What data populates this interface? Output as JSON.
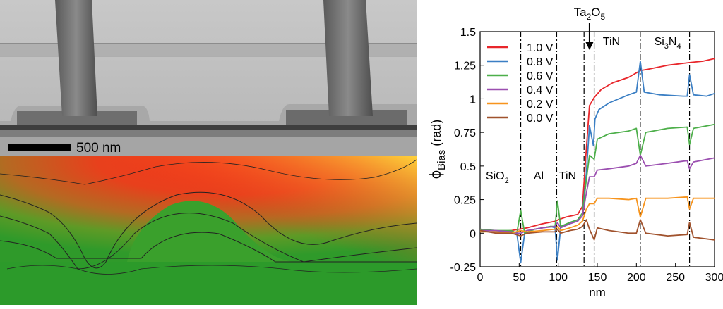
{
  "tem_panel": {
    "scale_bar_label": "500 nm"
  },
  "chart_data": {
    "type": "line",
    "xlabel": "nm",
    "ylabel_main": "ϕ",
    "ylabel_sub": "Bias",
    "ylabel_unit": " (rad)",
    "xlim": [
      0,
      300
    ],
    "ylim": [
      -0.25,
      1.5
    ],
    "x_ticks": [
      0,
      50,
      100,
      150,
      200,
      250,
      300
    ],
    "x_tick_labels": [
      "0",
      "50",
      "100",
      "150",
      "200",
      "250",
      "300"
    ],
    "y_ticks": [
      -0.25,
      0,
      0.25,
      0.5,
      0.75,
      1,
      1.25,
      1.5
    ],
    "y_tick_labels": [
      "-0.25",
      "0",
      "0.25",
      "0.5",
      "0.75",
      "1",
      "1.25",
      "1.5"
    ],
    "grid": false,
    "legend_position": "top-left",
    "boundaries": [
      52,
      98,
      133,
      146,
      205,
      268
    ],
    "region_labels": [
      {
        "text": "SiO",
        "sub": "2",
        "x": 22,
        "y": 0.4
      },
      {
        "text": "Al",
        "sub": "",
        "x": 75,
        "y": 0.4
      },
      {
        "text": "TiN",
        "sub": "",
        "x": 112,
        "y": 0.4
      },
      {
        "text": "TiN",
        "sub": "",
        "x": 168,
        "y": 1.4
      },
      {
        "text": "Si",
        "sub": "3",
        "text2": "N",
        "sub2": "4",
        "x": 240,
        "y": 1.4
      }
    ],
    "arrow_annotation": {
      "text": "Ta",
      "sub": "2",
      "text2": "O",
      "sub2": "5",
      "x": 140
    },
    "series": [
      {
        "name": "1.0 V",
        "color": "#e8262b",
        "points": [
          [
            0,
            0.02
          ],
          [
            20,
            0.01
          ],
          [
            40,
            0.02
          ],
          [
            50,
            0.03
          ],
          [
            60,
            0.04
          ],
          [
            80,
            0.07
          ],
          [
            97,
            0.09
          ],
          [
            100,
            0.1
          ],
          [
            110,
            0.12
          ],
          [
            125,
            0.14
          ],
          [
            131,
            0.2
          ],
          [
            135,
            0.55
          ],
          [
            140,
            0.95
          ],
          [
            146,
            1.01
          ],
          [
            155,
            1.07
          ],
          [
            170,
            1.12
          ],
          [
            190,
            1.16
          ],
          [
            205,
            1.21
          ],
          [
            215,
            1.22
          ],
          [
            240,
            1.25
          ],
          [
            268,
            1.27
          ],
          [
            285,
            1.28
          ],
          [
            300,
            1.3
          ]
        ]
      },
      {
        "name": "0.8 V",
        "color": "#3b7fc4",
        "points": [
          [
            0,
            0.02
          ],
          [
            20,
            0.01
          ],
          [
            40,
            0.01
          ],
          [
            47,
            0.0
          ],
          [
            52,
            -0.22
          ],
          [
            57,
            0.0
          ],
          [
            70,
            0.03
          ],
          [
            90,
            0.05
          ],
          [
            96,
            0.04
          ],
          [
            99,
            -0.2
          ],
          [
            103,
            0.04
          ],
          [
            115,
            0.08
          ],
          [
            125,
            0.1
          ],
          [
            131,
            0.15
          ],
          [
            136,
            0.45
          ],
          [
            140,
            0.8
          ],
          [
            145,
            0.65
          ],
          [
            147,
            0.85
          ],
          [
            152,
            0.92
          ],
          [
            165,
            0.97
          ],
          [
            190,
            1.03
          ],
          [
            200,
            1.05
          ],
          [
            205,
            1.28
          ],
          [
            210,
            1.05
          ],
          [
            230,
            1.03
          ],
          [
            260,
            1.02
          ],
          [
            265,
            1.02
          ],
          [
            268,
            1.18
          ],
          [
            273,
            1.03
          ],
          [
            290,
            1.02
          ],
          [
            300,
            1.04
          ]
        ]
      },
      {
        "name": "0.6 V",
        "color": "#4daf4a",
        "points": [
          [
            0,
            0.03
          ],
          [
            20,
            0.02
          ],
          [
            40,
            0.02
          ],
          [
            47,
            0.0
          ],
          [
            52,
            0.17
          ],
          [
            57,
            0.0
          ],
          [
            70,
            0.03
          ],
          [
            90,
            0.05
          ],
          [
            96,
            0.05
          ],
          [
            99,
            0.24
          ],
          [
            103,
            0.05
          ],
          [
            115,
            0.08
          ],
          [
            125,
            0.1
          ],
          [
            131,
            0.15
          ],
          [
            136,
            0.4
          ],
          [
            140,
            0.58
          ],
          [
            146,
            0.55
          ],
          [
            150,
            0.7
          ],
          [
            165,
            0.74
          ],
          [
            190,
            0.76
          ],
          [
            200,
            0.78
          ],
          [
            205,
            0.58
          ],
          [
            212,
            0.75
          ],
          [
            240,
            0.78
          ],
          [
            265,
            0.79
          ],
          [
            268,
            0.66
          ],
          [
            273,
            0.78
          ],
          [
            300,
            0.81
          ]
        ]
      },
      {
        "name": "0.4 V",
        "color": "#9b4fb0",
        "points": [
          [
            0,
            0.02
          ],
          [
            20,
            0.02
          ],
          [
            40,
            0.01
          ],
          [
            47,
            0.0
          ],
          [
            52,
            0.0
          ],
          [
            60,
            0.02
          ],
          [
            80,
            0.04
          ],
          [
            96,
            0.05
          ],
          [
            99,
            0.08
          ],
          [
            103,
            0.04
          ],
          [
            115,
            0.07
          ],
          [
            125,
            0.09
          ],
          [
            131,
            0.13
          ],
          [
            136,
            0.3
          ],
          [
            140,
            0.42
          ],
          [
            146,
            0.42
          ],
          [
            150,
            0.47
          ],
          [
            165,
            0.48
          ],
          [
            190,
            0.5
          ],
          [
            200,
            0.52
          ],
          [
            205,
            0.58
          ],
          [
            212,
            0.5
          ],
          [
            240,
            0.52
          ],
          [
            265,
            0.54
          ],
          [
            268,
            0.48
          ],
          [
            273,
            0.53
          ],
          [
            300,
            0.56
          ]
        ]
      },
      {
        "name": "0.2 V",
        "color": "#f7941d",
        "points": [
          [
            0,
            0.01
          ],
          [
            20,
            0.01
          ],
          [
            40,
            0.0
          ],
          [
            52,
            0.02
          ],
          [
            60,
            0.01
          ],
          [
            80,
            0.02
          ],
          [
            96,
            0.03
          ],
          [
            99,
            0.05
          ],
          [
            103,
            0.02
          ],
          [
            115,
            0.04
          ],
          [
            125,
            0.06
          ],
          [
            131,
            0.09
          ],
          [
            136,
            0.18
          ],
          [
            140,
            0.22
          ],
          [
            146,
            0.22
          ],
          [
            150,
            0.26
          ],
          [
            165,
            0.26
          ],
          [
            190,
            0.25
          ],
          [
            200,
            0.26
          ],
          [
            205,
            0.12
          ],
          [
            212,
            0.26
          ],
          [
            240,
            0.26
          ],
          [
            265,
            0.27
          ],
          [
            268,
            0.18
          ],
          [
            273,
            0.26
          ],
          [
            300,
            0.26
          ]
        ]
      },
      {
        "name": "0.0 V",
        "color": "#a0522d",
        "points": [
          [
            0,
            0.02
          ],
          [
            20,
            0.0
          ],
          [
            40,
            0.0
          ],
          [
            52,
            -0.02
          ],
          [
            60,
            0.0
          ],
          [
            80,
            0.01
          ],
          [
            96,
            0.01
          ],
          [
            99,
            0.03
          ],
          [
            103,
            0.0
          ],
          [
            115,
            0.02
          ],
          [
            125,
            0.03
          ],
          [
            131,
            0.05
          ],
          [
            136,
            0.1
          ],
          [
            140,
            0.03
          ],
          [
            146,
            -0.05
          ],
          [
            150,
            0.04
          ],
          [
            165,
            0.02
          ],
          [
            190,
            0.0
          ],
          [
            200,
            0.0
          ],
          [
            205,
            0.1
          ],
          [
            212,
            0.0
          ],
          [
            240,
            -0.02
          ],
          [
            265,
            -0.01
          ],
          [
            268,
            0.08
          ],
          [
            273,
            -0.03
          ],
          [
            300,
            -0.05
          ]
        ]
      }
    ]
  }
}
